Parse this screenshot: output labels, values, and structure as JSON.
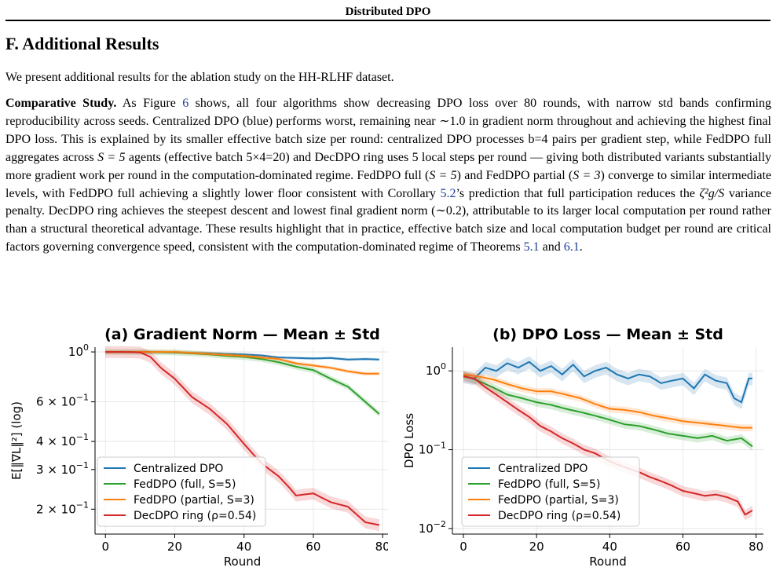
{
  "header": {
    "running_title": "Distributed DPO"
  },
  "section": {
    "title": "F. Additional Results"
  },
  "intro": "We present additional results for the ablation study on the HH-RLHF dataset.",
  "paragraph": {
    "lead": "Comparative Study.",
    "s1": " As Figure ",
    "ref_fig": "6",
    "s2": " shows, all four algorithms show decreasing DPO loss over 80 rounds, with narrow std bands confirming reproducibility across seeds. Centralized DPO (blue) performs worst, remaining near ∼1.0 in gradient norm throughout and achieving the highest final DPO loss. This is explained by its smaller effective batch size per round: centralized DPO processes b=4 pairs per gradient step, while FedDPO full aggregates across ",
    "m1": "S = 5",
    "s3": " agents (effective batch 5×4=20) and DecDPO ring uses 5 local steps per round — giving both distributed variants substantially more gradient work per round in the computation-dominated regime. FedDPO full (",
    "m2": "S = 5",
    "s4": ") and FedDPO partial (",
    "m3": "S = 3",
    "s5": ") converge to similar intermediate levels, with FedDPO full achieving a slightly lower floor consistent with Corollary ",
    "ref_cor": "5.2",
    "s6": "’s prediction that full participation reduces the ",
    "m4": "ζ²g/S",
    "s7": " variance penalty. DecDPO ring achieves the steepest descent and lowest final gradient norm (∼0.2), attributable to its larger local computation per round rather than a structural theoretical advantage. These results highlight that in practice, effective batch size and local computation budget per round are critical factors governing convergence speed, consistent with the computation-dominated regime of Theorems ",
    "ref_t1": "5.1",
    "s8": " and ",
    "ref_t2": "6.1",
    "s9": "."
  },
  "chart_data": [
    {
      "type": "line",
      "title": "(a) Gradient Norm — Mean ± Std",
      "xlabel": "Round",
      "ylabel": "E[‖∇L‖²] (log)",
      "xlim": [
        -3,
        82
      ],
      "ylim": [
        0.155,
        1.05
      ],
      "yscale": "log",
      "xticks": [
        0,
        20,
        40,
        60,
        80
      ],
      "yticks": [
        {
          "value": 1.0,
          "base": "10",
          "exp": "0",
          "mult": ""
        },
        {
          "value": 0.6,
          "base": "10",
          "exp": "−1",
          "mult": "6 × "
        },
        {
          "value": 0.4,
          "base": "10",
          "exp": "−1",
          "mult": "4 × "
        },
        {
          "value": 0.3,
          "base": "10",
          "exp": "−1",
          "mult": "3 × "
        },
        {
          "value": 0.2,
          "base": "10",
          "exp": "−1",
          "mult": "2 × "
        }
      ],
      "grid": true,
      "legend": "bottom-left",
      "series": [
        {
          "name": "Centralized DPO",
          "color": "#1f77b4",
          "band": 0.015,
          "points": [
            [
              0,
              1.0
            ],
            [
              10,
              1.0
            ],
            [
              20,
              0.995
            ],
            [
              30,
              0.985
            ],
            [
              40,
              0.975
            ],
            [
              45,
              0.965
            ],
            [
              50,
              0.945
            ],
            [
              55,
              0.94
            ],
            [
              60,
              0.935
            ],
            [
              65,
              0.94
            ],
            [
              70,
              0.925
            ],
            [
              75,
              0.93
            ],
            [
              79,
              0.925
            ]
          ]
        },
        {
          "name": "FedDPO (full, S=5)",
          "color": "#2ca02c",
          "band": 0.03,
          "points": [
            [
              0,
              1.0
            ],
            [
              10,
              1.0
            ],
            [
              20,
              0.995
            ],
            [
              25,
              0.985
            ],
            [
              30,
              0.975
            ],
            [
              35,
              0.96
            ],
            [
              40,
              0.95
            ],
            [
              45,
              0.93
            ],
            [
              50,
              0.9
            ],
            [
              55,
              0.86
            ],
            [
              60,
              0.83
            ],
            [
              65,
              0.76
            ],
            [
              70,
              0.7
            ],
            [
              75,
              0.6
            ],
            [
              79,
              0.53
            ]
          ]
        },
        {
          "name": "FedDPO (partial, S=3)",
          "color": "#ff7f0e",
          "band": 0.02,
          "points": [
            [
              0,
              1.0
            ],
            [
              10,
              1.0
            ],
            [
              20,
              1.0
            ],
            [
              30,
              0.98
            ],
            [
              40,
              0.96
            ],
            [
              50,
              0.93
            ],
            [
              55,
              0.89
            ],
            [
              60,
              0.87
            ],
            [
              65,
              0.85
            ],
            [
              70,
              0.82
            ],
            [
              75,
              0.8
            ],
            [
              79,
              0.8
            ]
          ]
        },
        {
          "name": "DecDPO ring (ρ=0.54)",
          "color": "#d62728",
          "band": 0.06,
          "points": [
            [
              0,
              1.0
            ],
            [
              5,
              1.0
            ],
            [
              10,
              0.995
            ],
            [
              13,
              0.95
            ],
            [
              16,
              0.85
            ],
            [
              20,
              0.76
            ],
            [
              25,
              0.63
            ],
            [
              30,
              0.56
            ],
            [
              35,
              0.48
            ],
            [
              40,
              0.39
            ],
            [
              45,
              0.32
            ],
            [
              50,
              0.28
            ],
            [
              53,
              0.25
            ],
            [
              55,
              0.23
            ],
            [
              60,
              0.235
            ],
            [
              65,
              0.215
            ],
            [
              70,
              0.205
            ],
            [
              75,
              0.175
            ],
            [
              79,
              0.17
            ]
          ]
        }
      ]
    },
    {
      "type": "line",
      "title": "(b) DPO Loss — Mean ± Std",
      "xlabel": "Round",
      "ylabel": "DPO Loss",
      "xlim": [
        -3,
        82
      ],
      "ylim": [
        0.0085,
        2.0
      ],
      "yscale": "log",
      "xticks": [
        0,
        20,
        40,
        60,
        80
      ],
      "yticks": [
        {
          "value": 1.0,
          "base": "10",
          "exp": "0",
          "mult": ""
        },
        {
          "value": 0.1,
          "base": "10",
          "exp": "−1",
          "mult": ""
        },
        {
          "value": 0.01,
          "base": "10",
          "exp": "−2",
          "mult": ""
        }
      ],
      "grid": true,
      "legend": "bottom-left",
      "series": [
        {
          "name": "Centralized DPO",
          "color": "#1f77b4",
          "band": 0.18,
          "points": [
            [
              0,
              0.85
            ],
            [
              3,
              0.8
            ],
            [
              6,
              1.1
            ],
            [
              9,
              1.0
            ],
            [
              12,
              1.25
            ],
            [
              15,
              1.1
            ],
            [
              18,
              1.3
            ],
            [
              21,
              1.0
            ],
            [
              24,
              1.15
            ],
            [
              27,
              0.9
            ],
            [
              30,
              1.2
            ],
            [
              33,
              0.85
            ],
            [
              36,
              1.0
            ],
            [
              39,
              1.1
            ],
            [
              42,
              0.9
            ],
            [
              45,
              0.8
            ],
            [
              48,
              0.9
            ],
            [
              51,
              0.85
            ],
            [
              54,
              0.7
            ],
            [
              57,
              0.75
            ],
            [
              60,
              0.8
            ],
            [
              63,
              0.6
            ],
            [
              66,
              0.9
            ],
            [
              69,
              0.75
            ],
            [
              72,
              0.7
            ],
            [
              74,
              0.45
            ],
            [
              76,
              0.4
            ],
            [
              78,
              0.8
            ],
            [
              79,
              0.8
            ]
          ]
        },
        {
          "name": "FedDPO (full, S=5)",
          "color": "#2ca02c",
          "band": 0.12,
          "points": [
            [
              0,
              0.88
            ],
            [
              4,
              0.75
            ],
            [
              8,
              0.62
            ],
            [
              12,
              0.5
            ],
            [
              16,
              0.45
            ],
            [
              20,
              0.4
            ],
            [
              24,
              0.37
            ],
            [
              28,
              0.33
            ],
            [
              32,
              0.3
            ],
            [
              36,
              0.27
            ],
            [
              40,
              0.24
            ],
            [
              44,
              0.21
            ],
            [
              48,
              0.2
            ],
            [
              52,
              0.18
            ],
            [
              56,
              0.16
            ],
            [
              60,
              0.15
            ],
            [
              64,
              0.14
            ],
            [
              68,
              0.15
            ],
            [
              72,
              0.13
            ],
            [
              76,
              0.14
            ],
            [
              79,
              0.11
            ]
          ]
        },
        {
          "name": "FedDPO (partial, S=3)",
          "color": "#ff7f0e",
          "band": 0.1,
          "points": [
            [
              0,
              0.9
            ],
            [
              4,
              0.85
            ],
            [
              8,
              0.78
            ],
            [
              12,
              0.68
            ],
            [
              16,
              0.6
            ],
            [
              20,
              0.55
            ],
            [
              24,
              0.55
            ],
            [
              28,
              0.5
            ],
            [
              32,
              0.45
            ],
            [
              36,
              0.38
            ],
            [
              40,
              0.33
            ],
            [
              44,
              0.32
            ],
            [
              48,
              0.3
            ],
            [
              52,
              0.27
            ],
            [
              56,
              0.25
            ],
            [
              60,
              0.23
            ],
            [
              64,
              0.22
            ],
            [
              68,
              0.21
            ],
            [
              72,
              0.2
            ],
            [
              76,
              0.19
            ],
            [
              79,
              0.19
            ]
          ]
        },
        {
          "name": "DecDPO ring (ρ=0.54)",
          "color": "#d62728",
          "band": 0.15,
          "points": [
            [
              0,
              0.85
            ],
            [
              3,
              0.8
            ],
            [
              6,
              0.62
            ],
            [
              9,
              0.5
            ],
            [
              12,
              0.4
            ],
            [
              15,
              0.32
            ],
            [
              18,
              0.26
            ],
            [
              21,
              0.2
            ],
            [
              24,
              0.17
            ],
            [
              27,
              0.14
            ],
            [
              30,
              0.12
            ],
            [
              33,
              0.1
            ],
            [
              36,
              0.09
            ],
            [
              39,
              0.075
            ],
            [
              42,
              0.065
            ],
            [
              45,
              0.058
            ],
            [
              48,
              0.052
            ],
            [
              51,
              0.045
            ],
            [
              54,
              0.04
            ],
            [
              57,
              0.035
            ],
            [
              60,
              0.03
            ],
            [
              63,
              0.028
            ],
            [
              66,
              0.026
            ],
            [
              69,
              0.027
            ],
            [
              72,
              0.025
            ],
            [
              75,
              0.022
            ],
            [
              77,
              0.015
            ],
            [
              79,
              0.017
            ]
          ]
        }
      ]
    }
  ]
}
